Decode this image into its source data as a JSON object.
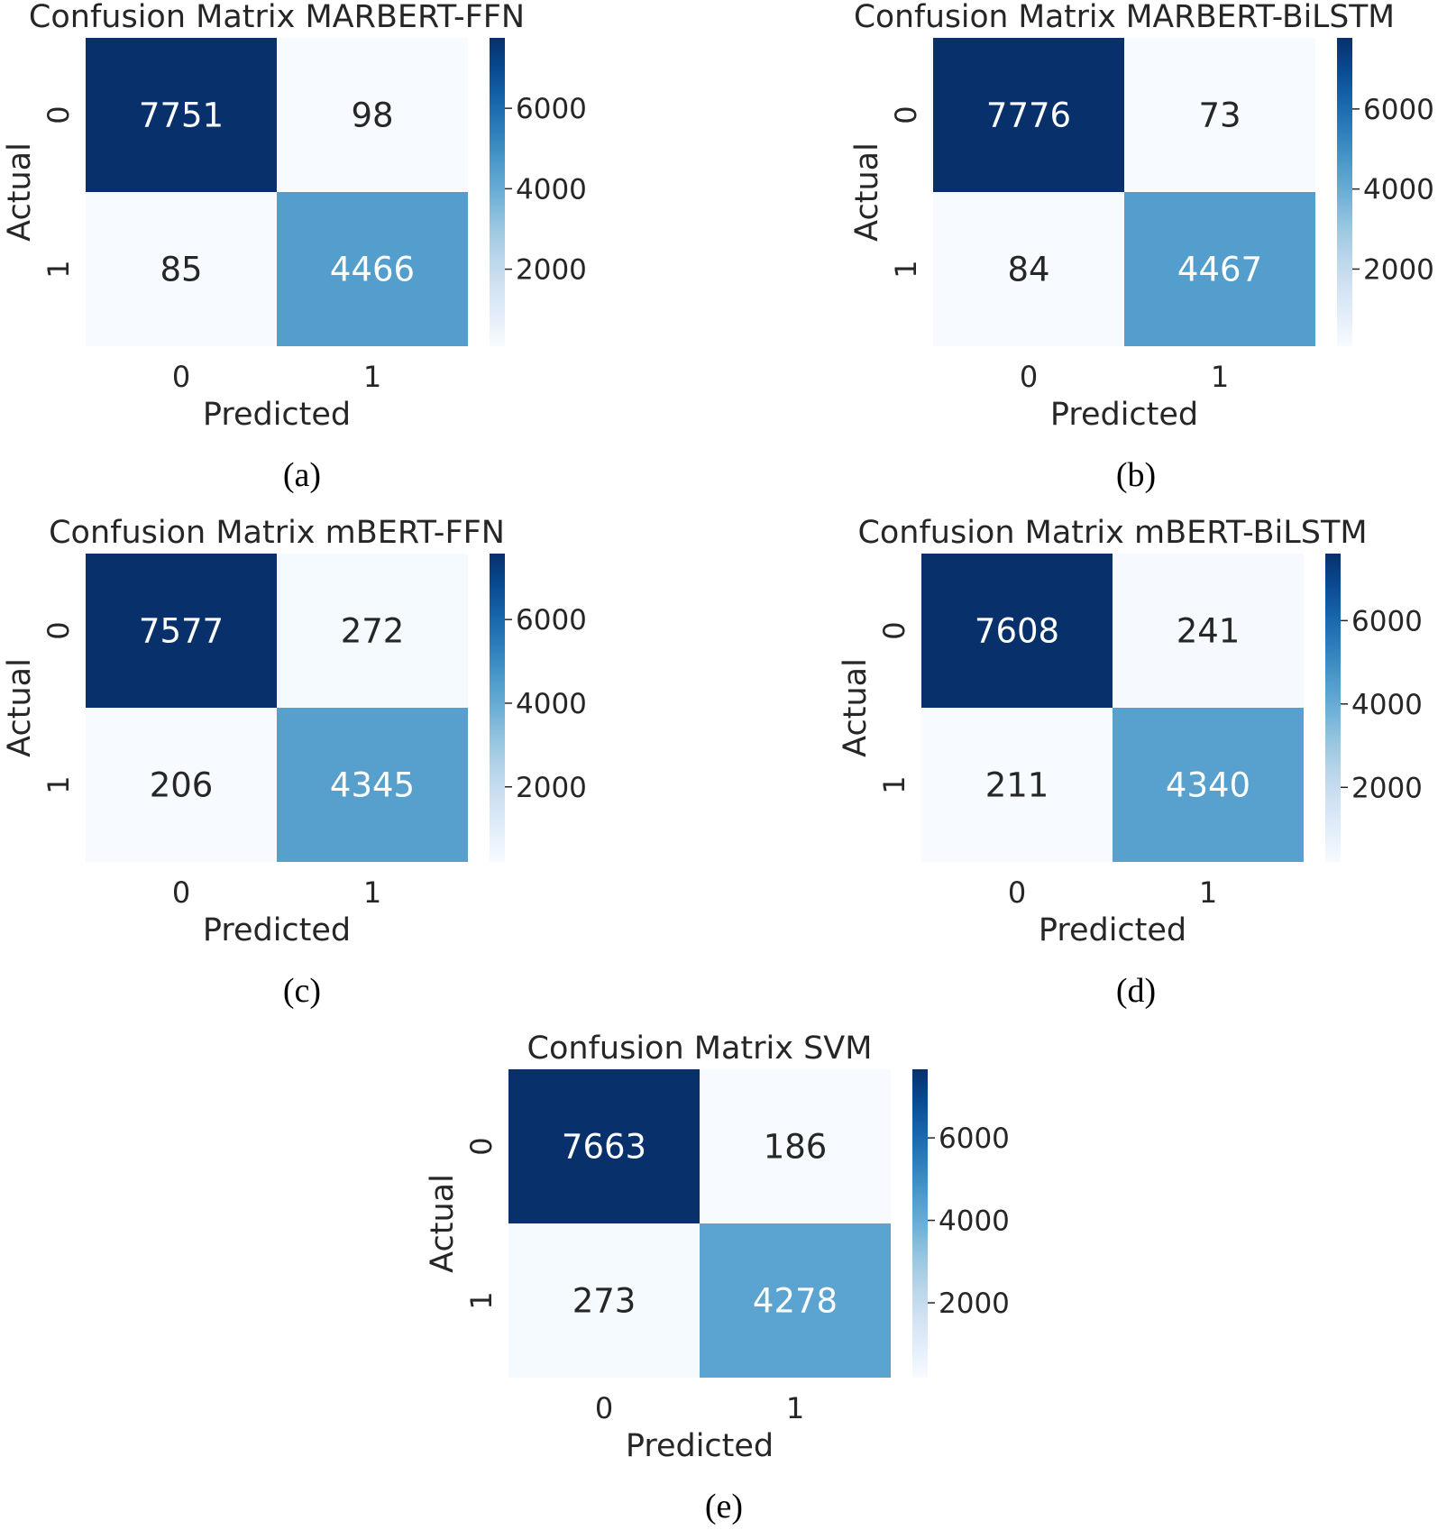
{
  "colors": {
    "cmap_light": "#f7fbff",
    "cmap_dark": "#08306b",
    "text_light": "#ffffff",
    "text_dark": "#262626"
  },
  "chart_data": [
    {
      "type": "heatmap",
      "panel": "a",
      "caption": "(a)",
      "title": "Confusion Matrix MARBERT-FFN",
      "xlabel": "Predicted",
      "ylabel": "Actual",
      "x_ticks": [
        "0",
        "1"
      ],
      "y_ticks": [
        "0",
        "1"
      ],
      "values": [
        [
          7751,
          98
        ],
        [
          85,
          4466
        ]
      ],
      "colorbar": {
        "ticks": [
          "6000",
          "4000",
          "2000"
        ],
        "range": [
          85,
          7751
        ],
        "cmap": "Blues"
      }
    },
    {
      "type": "heatmap",
      "panel": "b",
      "caption": "(b)",
      "title": "Confusion Matrix MARBERT-BiLSTM",
      "xlabel": "Predicted",
      "ylabel": "Actual",
      "x_ticks": [
        "0",
        "1"
      ],
      "y_ticks": [
        "0",
        "1"
      ],
      "values": [
        [
          7776,
          73
        ],
        [
          84,
          4467
        ]
      ],
      "colorbar": {
        "ticks": [
          "6000",
          "4000",
          "2000"
        ],
        "range": [
          73,
          7776
        ],
        "cmap": "Blues"
      }
    },
    {
      "type": "heatmap",
      "panel": "c",
      "caption": "(c)",
      "title": "Confusion Matrix mBERT-FFN",
      "xlabel": "Predicted",
      "ylabel": "Actual",
      "x_ticks": [
        "0",
        "1"
      ],
      "y_ticks": [
        "0",
        "1"
      ],
      "values": [
        [
          7577,
          272
        ],
        [
          206,
          4345
        ]
      ],
      "colorbar": {
        "ticks": [
          "6000",
          "4000",
          "2000"
        ],
        "range": [
          206,
          7577
        ],
        "cmap": "Blues"
      }
    },
    {
      "type": "heatmap",
      "panel": "d",
      "caption": "(d)",
      "title": "Confusion Matrix mBERT-BiLSTM",
      "xlabel": "Predicted",
      "ylabel": "Actual",
      "x_ticks": [
        "0",
        "1"
      ],
      "y_ticks": [
        "0",
        "1"
      ],
      "values": [
        [
          7608,
          241
        ],
        [
          211,
          4340
        ]
      ],
      "colorbar": {
        "ticks": [
          "6000",
          "4000",
          "2000"
        ],
        "range": [
          211,
          7608
        ],
        "cmap": "Blues"
      }
    },
    {
      "type": "heatmap",
      "panel": "e",
      "caption": "(e)",
      "title": "Confusion Matrix SVM",
      "xlabel": "Predicted",
      "ylabel": "Actual",
      "x_ticks": [
        "0",
        "1"
      ],
      "y_ticks": [
        "0",
        "1"
      ],
      "values": [
        [
          7663,
          186
        ],
        [
          273,
          4278
        ]
      ],
      "colorbar": {
        "ticks": [
          "6000",
          "4000",
          "2000"
        ],
        "range": [
          186,
          7663
        ],
        "cmap": "Blues"
      }
    }
  ]
}
